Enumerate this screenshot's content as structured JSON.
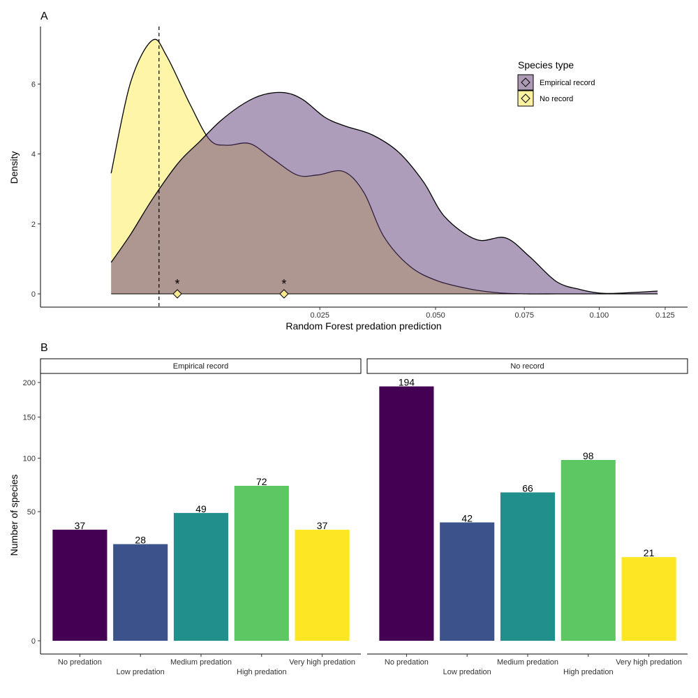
{
  "chart_data": [
    {
      "panel": "A",
      "type": "area",
      "xlabel": "Random Forest predation prediction",
      "ylabel": "Density",
      "x_scale": "sqrt",
      "xlim": [
        0,
        0.125
      ],
      "ylim": [
        0,
        7.3
      ],
      "x_ticks": [
        0.025,
        0.05,
        0.075,
        0.1,
        0.125
      ],
      "x_tick_labels": [
        "0.025",
        "0.050",
        "0.075",
        "0.100",
        "0.125"
      ],
      "y_ticks": [
        0,
        2,
        4,
        6
      ],
      "y_tick_labels": [
        "0",
        "2",
        "4",
        "6"
      ],
      "legend": {
        "title": "Species type",
        "position": "top-right",
        "entries": [
          "Empirical record",
          "No record"
        ]
      },
      "threshold_x": 0.0045,
      "markers": [
        {
          "series": "No record",
          "x": 0.006,
          "y": 0,
          "annotation": "*"
        },
        {
          "series": "No record",
          "x": 0.019,
          "y": 0,
          "annotation": "*"
        }
      ],
      "series": [
        {
          "name": "Empirical record",
          "color": "#5d3a77",
          "opacity": 0.5,
          "x": [
            0.0016,
            0.0026,
            0.004,
            0.0061,
            0.0081,
            0.0104,
            0.0133,
            0.016,
            0.0192,
            0.0221,
            0.0259,
            0.0297,
            0.0352,
            0.0411,
            0.047,
            0.0524,
            0.0609,
            0.0693,
            0.0768,
            0.0853,
            0.0935,
            0.1005,
            0.1075,
            0.122
          ],
          "y": [
            0.9,
            1.7,
            2.7,
            3.75,
            4.35,
            4.95,
            5.45,
            5.7,
            5.75,
            5.55,
            5.05,
            4.8,
            4.55,
            4.05,
            3.2,
            2.2,
            1.55,
            1.6,
            1.05,
            0.35,
            0.12,
            0.02,
            0.02,
            0.08
          ],
          "baseline_start": 0.0016
        },
        {
          "name": "No record",
          "color": "#fde725",
          "opacity": 0.4,
          "x": [
            0.0016,
            0.0026,
            0.004,
            0.0051,
            0.0072,
            0.0092,
            0.0112,
            0.014,
            0.017,
            0.0211,
            0.0246,
            0.0294,
            0.0335,
            0.0377,
            0.0436,
            0.0503,
            0.059,
            0.0672,
            0.0758,
            0.0853,
            0.0957,
            0.1075,
            0.122
          ],
          "y": [
            3.45,
            6.05,
            7.25,
            6.8,
            5.4,
            4.4,
            4.25,
            4.3,
            3.9,
            3.4,
            3.4,
            3.5,
            2.9,
            1.65,
            0.8,
            0.38,
            0.14,
            0.03,
            0.0,
            0.0,
            0.0,
            0.0,
            0.0
          ]
        }
      ]
    },
    {
      "panel": "B",
      "type": "bar",
      "ylabel": "Number of species",
      "y_scale": "sqrt",
      "ylim": [
        0,
        210
      ],
      "y_ticks": [
        0,
        50,
        100,
        150,
        200
      ],
      "y_tick_labels": [
        "0",
        "50",
        "100",
        "150",
        "200"
      ],
      "categories": [
        "No predation",
        "Low predation",
        "Medium predation",
        "High predation",
        "Very high predation"
      ],
      "colors": [
        "#440154",
        "#3b528b",
        "#21908c",
        "#5dc863",
        "#fde725"
      ],
      "facets": [
        {
          "name": "Empirical record",
          "values": [
            37,
            28,
            49,
            72,
            37
          ]
        },
        {
          "name": "No record",
          "values": [
            194,
            42,
            66,
            98,
            21
          ]
        }
      ]
    }
  ],
  "panel_tags": {
    "a": "A",
    "b": "B"
  },
  "annotation_marks": [
    "*",
    "*"
  ]
}
